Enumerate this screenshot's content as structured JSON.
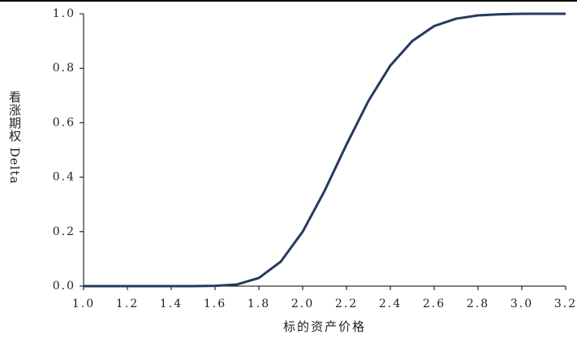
{
  "chart_data": {
    "type": "line",
    "x_label": "标的资产价格",
    "y_label": "看涨期权 Delta",
    "x": [
      1.0,
      1.1,
      1.2,
      1.3,
      1.4,
      1.5,
      1.6,
      1.7,
      1.8,
      1.9,
      2.0,
      2.1,
      2.2,
      2.3,
      2.4,
      2.5,
      2.6,
      2.7,
      2.8,
      2.9,
      3.0,
      3.1,
      3.2
    ],
    "values": [
      0,
      0,
      0,
      0,
      0,
      0,
      0.001,
      0.006,
      0.03,
      0.09,
      0.2,
      0.35,
      0.52,
      0.68,
      0.81,
      0.9,
      0.955,
      0.982,
      0.994,
      0.998,
      1,
      1,
      1
    ],
    "color": "#253a5e",
    "xlim": [
      1.0,
      3.2
    ],
    "xticks": [
      {
        "value": 1,
        "label": "1.0"
      },
      1.2,
      1.4,
      1.6,
      1.8,
      {
        "value": 2,
        "label": "2.0"
      },
      2.2,
      2.4,
      2.6,
      2.8,
      {
        "value": 3,
        "label": "3.0"
      },
      3.2
    ],
    "ylim": [
      0,
      1
    ],
    "yticks": [
      {
        "value": 0,
        "label": "0.0"
      },
      0.2,
      0.4,
      0.6,
      0.8,
      {
        "value": 1,
        "label": "1.0"
      }
    ],
    "grid": false
  }
}
